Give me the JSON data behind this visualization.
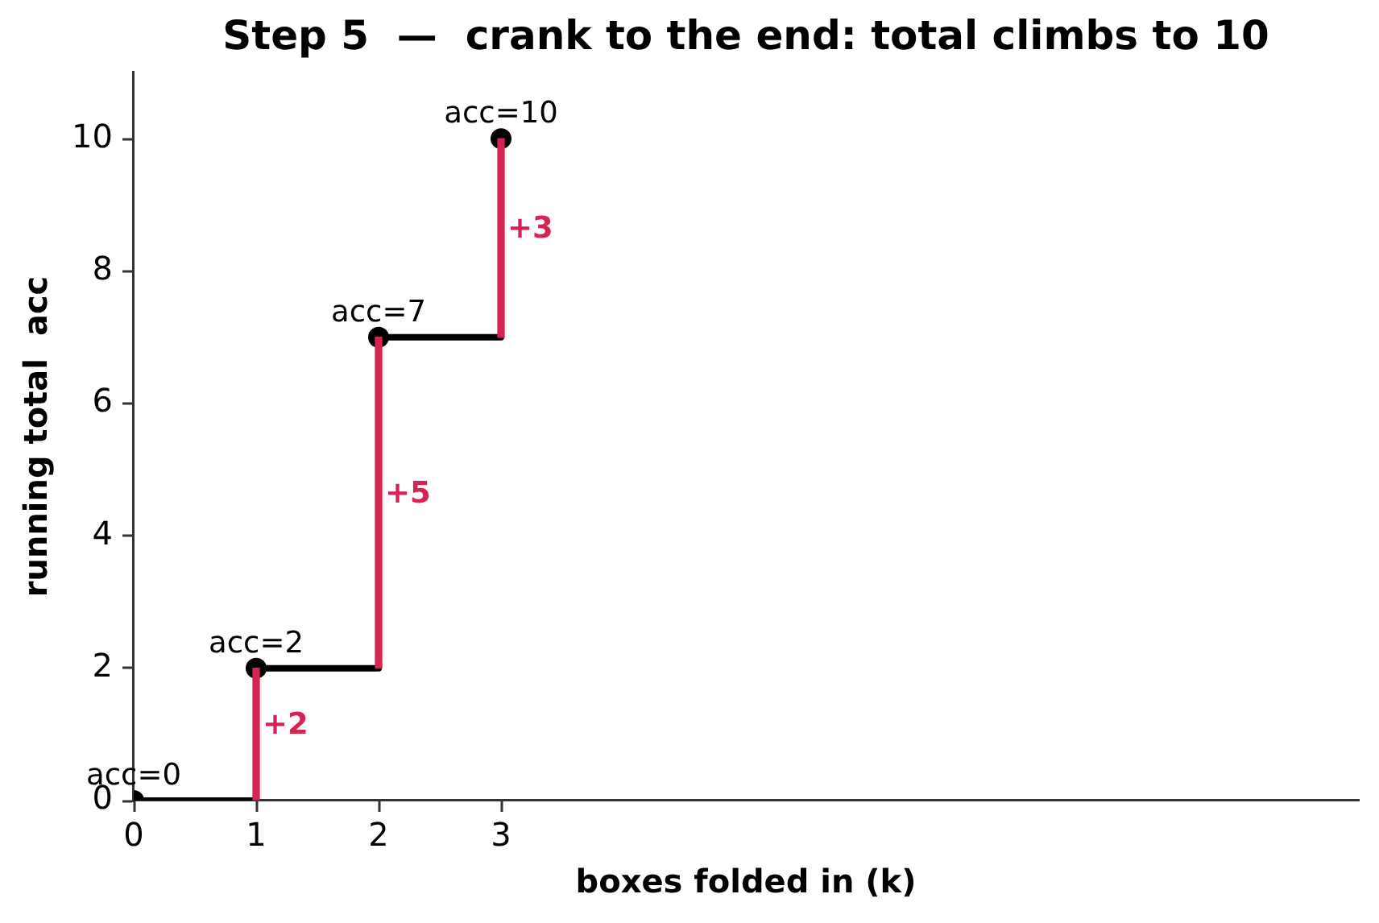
{
  "chart_data": {
    "type": "step",
    "title": "Step 5  —  crank to the end: total climbs to 10",
    "xlabel": "boxes folded in (k)",
    "ylabel": "running total  acc",
    "xlim": [
      0,
      10
    ],
    "xticks": [
      0,
      1,
      2,
      3
    ],
    "ylim": [
      0,
      11
    ],
    "yticks": [
      0,
      2,
      4,
      6,
      8,
      10
    ],
    "grid": false,
    "legend": false,
    "series": [
      {
        "color": "#000000",
        "x": [
          0,
          1,
          2,
          3
        ],
        "values": [
          0,
          2,
          7,
          10
        ],
        "marker": "circle",
        "value_labels": [
          "acc=0",
          "acc=2",
          "acc=7",
          "acc=10"
        ]
      },
      {
        "type": "bar",
        "color": "#d62452",
        "x": [
          1,
          2,
          3
        ],
        "base": [
          0,
          2,
          7
        ],
        "values": [
          2,
          5,
          3
        ],
        "value_labels": [
          "+2",
          "+5",
          "+3"
        ]
      }
    ]
  }
}
